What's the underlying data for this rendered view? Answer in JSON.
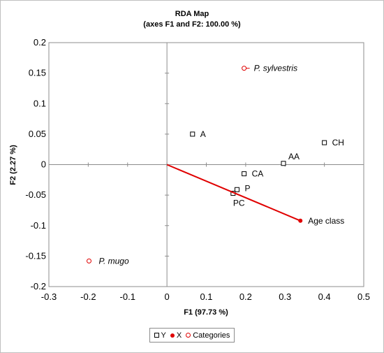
{
  "chart_data": {
    "type": "scatter",
    "title": "RDA Map",
    "subtitle": "(axes F1 and F2: 100.00 %)",
    "xlabel": "F1 (97.73 %)",
    "ylabel": "F2 (2.27 %)",
    "xlim": [
      -0.3,
      0.5
    ],
    "ylim": [
      -0.2,
      0.2
    ],
    "xticks": [
      "-0.3",
      "-0.2",
      "-0.1",
      "0",
      "0.1",
      "0.2",
      "0.3",
      "0.4",
      "0.5"
    ],
    "yticks": [
      "0.2",
      "0.15",
      "0.1",
      "0.05",
      "0",
      "-0.05",
      "-0.1",
      "-0.15",
      "-0.2"
    ],
    "grid": false,
    "legend_position": "bottom",
    "legend": [
      "Y",
      "X",
      "Categories"
    ],
    "series": [
      {
        "name": "Y",
        "marker": "square",
        "color": "#000000",
        "points": [
          {
            "label": "A",
            "x": 0.065,
            "y": 0.05
          },
          {
            "label": "CH",
            "x": 0.4,
            "y": 0.036
          },
          {
            "label": "AA",
            "x": 0.296,
            "y": 0.002
          },
          {
            "label": "CA",
            "x": 0.196,
            "y": -0.015
          },
          {
            "label": "P",
            "x": 0.178,
            "y": -0.041
          },
          {
            "label": "PC",
            "x": 0.168,
            "y": -0.047
          }
        ]
      },
      {
        "name": "X",
        "marker": "filled-circle",
        "color": "#e00000",
        "points": [
          {
            "label": "Age class",
            "x": 0.339,
            "y": -0.092
          }
        ]
      },
      {
        "name": "Categories",
        "marker": "open-circle",
        "color": "#e00000",
        "points": [
          {
            "label": "P. sylvestris",
            "x": 0.196,
            "y": 0.158
          },
          {
            "label": "P. mugo",
            "x": -0.198,
            "y": -0.158
          }
        ]
      }
    ]
  }
}
